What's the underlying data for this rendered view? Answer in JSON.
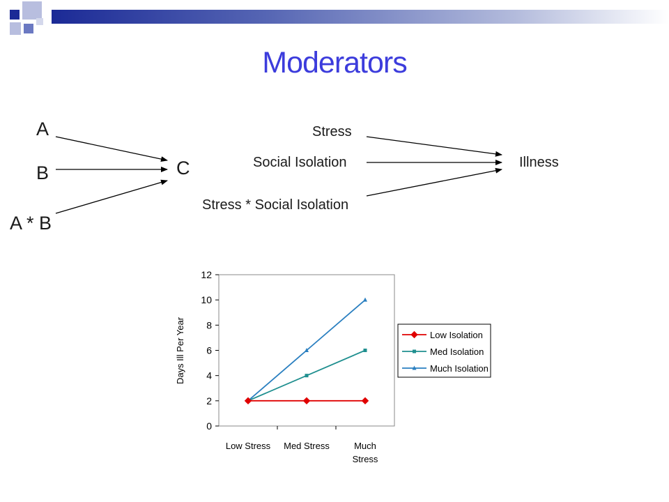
{
  "slide": {
    "title": "Moderators"
  },
  "generic_diagram": {
    "inputs": [
      "A",
      "B",
      "A * B"
    ],
    "output": "C"
  },
  "example_diagram": {
    "inputs": [
      "Stress",
      "Social Isolation",
      "Stress * Social Isolation"
    ],
    "output": "Illness"
  },
  "colors": {
    "title": "#3c3cdc",
    "top_bar": "#1b2a96",
    "low_isolation": "#e00000",
    "med_isolation": "#1f8f8f",
    "much_isolation": "#2a7fc0"
  },
  "chart_data": {
    "type": "line",
    "categories": [
      "Low Stress",
      "Med Stress",
      "Much Stress"
    ],
    "category_lines": [
      [
        "Low Stress"
      ],
      [
        "Med Stress"
      ],
      [
        "Much",
        "Stress"
      ]
    ],
    "ylabel": "Days Ill Per Year",
    "ylim": [
      0,
      12
    ],
    "yticks": [
      0,
      2,
      4,
      6,
      8,
      10,
      12
    ],
    "grid": false,
    "legend": "right",
    "series": [
      {
        "name": "Low Isolation",
        "values": [
          2,
          2,
          2
        ],
        "marker": "diamond",
        "color": "#e00000"
      },
      {
        "name": "Med Isolation",
        "values": [
          2,
          4,
          6
        ],
        "marker": "square",
        "color": "#1f8f8f"
      },
      {
        "name": "Much Isolation",
        "values": [
          2,
          6,
          10
        ],
        "marker": "triangle",
        "color": "#2a7fc0"
      }
    ]
  }
}
